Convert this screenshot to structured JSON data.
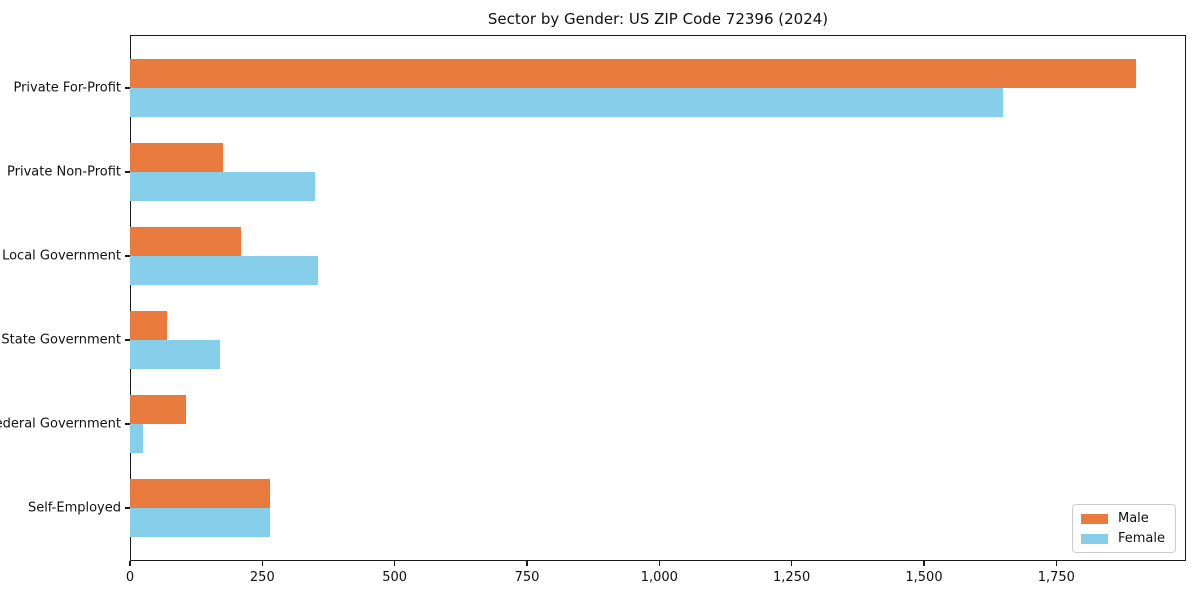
{
  "title": "Sector by Gender: US ZIP Code 72396 (2024)",
  "chart_data": {
    "type": "bar",
    "orientation": "horizontal",
    "title": "Sector by Gender: US ZIP Code 72396 (2024)",
    "categories": [
      "Private For-Profit",
      "Private Non-Profit",
      "Local Government",
      "State Government",
      "Federal Government",
      "Self-Employed"
    ],
    "series": [
      {
        "name": "Male",
        "color": "#E87B3D",
        "values": [
          1900,
          175,
          210,
          70,
          105,
          265
        ]
      },
      {
        "name": "Female",
        "color": "#87CEEB",
        "values": [
          1650,
          350,
          355,
          170,
          25,
          265
        ]
      }
    ],
    "xlim": [
      0,
      1995
    ],
    "xticks": [
      0,
      250,
      500,
      750,
      1000,
      1250,
      1500,
      1750
    ],
    "xtick_labels": [
      "0",
      "250",
      "500",
      "750",
      "1,000",
      "1,250",
      "1,500",
      "1,750"
    ],
    "xlabel": "",
    "ylabel": "",
    "grid": false,
    "legend": {
      "position": "lower-right",
      "items": [
        "Male",
        "Female"
      ]
    }
  }
}
